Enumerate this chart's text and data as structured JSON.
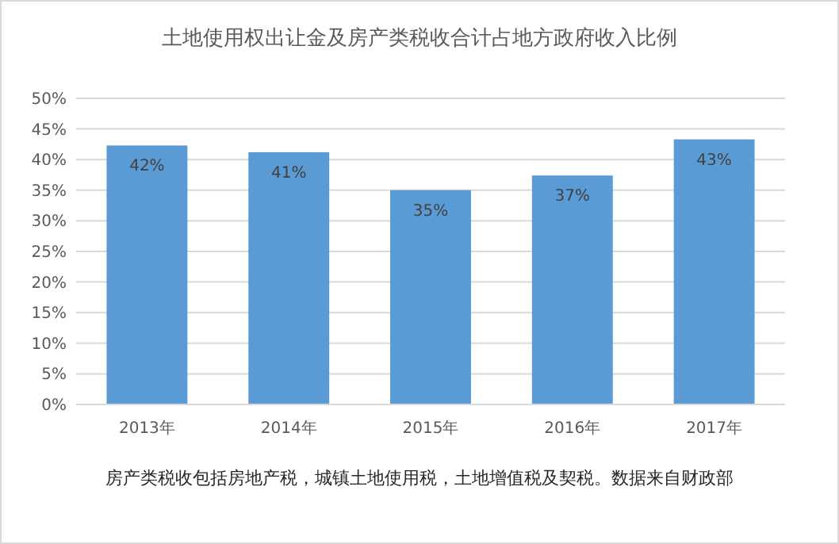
{
  "chart_data": {
    "type": "bar",
    "title": "土地使用权出让金及房产类税收合计占地方政府收入比例",
    "categories": [
      "2013年",
      "2014年",
      "2015年",
      "2016年",
      "2017年"
    ],
    "values": [
      42.3,
      41.2,
      35.0,
      37.4,
      43.3
    ],
    "value_labels": [
      "42%",
      "41%",
      "35%",
      "37%",
      "43%"
    ],
    "color": "#5b9bd5",
    "ylim": [
      0,
      50
    ],
    "yticks": [
      {
        "value": 0,
        "label": "0%"
      },
      {
        "value": 5,
        "label": "5%"
      },
      {
        "value": 10,
        "label": "10%"
      },
      {
        "value": 15,
        "label": "15%"
      },
      {
        "value": 20,
        "label": "20%"
      },
      {
        "value": 25,
        "label": "25%"
      },
      {
        "value": 30,
        "label": "30%"
      },
      {
        "value": 35,
        "label": "35%"
      },
      {
        "value": 40,
        "label": "40%"
      },
      {
        "value": 45,
        "label": "45%"
      },
      {
        "value": 50,
        "label": "50%"
      }
    ],
    "grid": "y",
    "annotations": [
      "房产类税收包括房地产税，城镇土地使用税，土地增值税及契税。数据来自财政部"
    ]
  }
}
